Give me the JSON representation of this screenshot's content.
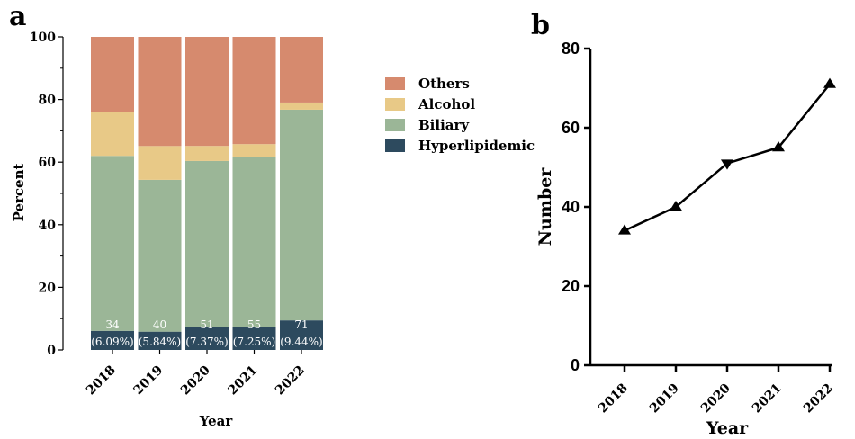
{
  "chart_data": [
    {
      "panel": "a",
      "type": "bar",
      "stacked": true,
      "categories": [
        "2018",
        "2019",
        "2020",
        "2021",
        "2022"
      ],
      "series": [
        {
          "name": "Hyperlipidemic",
          "color": "#2d4a5e",
          "values": [
            6.09,
            5.84,
            7.37,
            7.25,
            9.44
          ]
        },
        {
          "name": "Biliary",
          "color": "#9bb697",
          "values": [
            55.9,
            48.5,
            53.0,
            54.3,
            67.3
          ]
        },
        {
          "name": "Alcohol",
          "color": "#e8c987",
          "values": [
            14.0,
            10.8,
            4.8,
            4.2,
            2.3
          ]
        },
        {
          "name": "Others",
          "color": "#d68a6e",
          "values": [
            24.01,
            34.86,
            34.83,
            34.25,
            20.96
          ]
        }
      ],
      "bar_labels": [
        {
          "count": "34",
          "pct": "(6.09%)"
        },
        {
          "count": "40",
          "pct": "(5.84%)"
        },
        {
          "count": "51",
          "pct": "(7.37%)"
        },
        {
          "count": "55",
          "pct": "(7.25%)"
        },
        {
          "count": "71",
          "pct": "(9.44%)"
        }
      ],
      "xlabel": "Year",
      "ylabel": "Percent",
      "ylim": [
        0,
        100
      ],
      "yticks": [
        0,
        20,
        40,
        60,
        80,
        100
      ],
      "legend_position": "right"
    },
    {
      "panel": "b",
      "type": "line",
      "x": [
        "2018",
        "2019",
        "2020",
        "2021",
        "2022"
      ],
      "y": [
        34,
        40,
        51,
        55,
        71
      ],
      "markers": [
        "triangle-up",
        "triangle-up",
        "triangle-down",
        "triangle-up",
        "triangle-up"
      ],
      "xlabel": "Year",
      "ylabel": "Number",
      "ylim": [
        0,
        80
      ],
      "yticks": [
        0,
        20,
        40,
        60,
        80
      ],
      "color": "#000000"
    }
  ]
}
